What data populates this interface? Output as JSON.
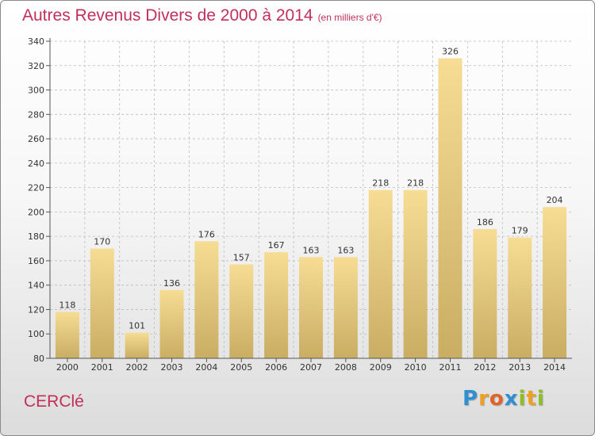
{
  "title": {
    "main": "Autres Revenus Divers de 2000 à 2014",
    "sub": "(en milliers d'€)"
  },
  "location": "CERClé",
  "logo": {
    "text": "Proxiti",
    "letters": [
      {
        "ch": "P",
        "color": "#2f8fd0"
      },
      {
        "ch": "r",
        "color": "#f0a020"
      },
      {
        "ch": "o",
        "color": "#e0632a"
      },
      {
        "ch": "x",
        "color": "#2f8fd0"
      },
      {
        "ch": "i",
        "color": "#8cbf26"
      },
      {
        "ch": "t",
        "color": "#f0a020"
      },
      {
        "ch": "i",
        "color": "#8cbf26"
      }
    ]
  },
  "colors": {
    "accent": "#c2305a",
    "bar_light": "#f7dc94",
    "bar_dark": "#c9ad63",
    "grid": "#bdbdbd"
  },
  "chart_data": {
    "type": "bar",
    "title": "Autres Revenus Divers de 2000 à 2014",
    "subtitle": "(en milliers d'€)",
    "xlabel": "",
    "ylabel": "",
    "categories": [
      "2000",
      "2001",
      "2002",
      "2003",
      "2004",
      "2005",
      "2006",
      "2007",
      "2008",
      "2009",
      "2010",
      "2011",
      "2012",
      "2013",
      "2014"
    ],
    "values": [
      118,
      170,
      101,
      136,
      176,
      157,
      167,
      163,
      163,
      218,
      218,
      326,
      186,
      179,
      204
    ],
    "ylim": [
      80,
      340
    ],
    "yticks": [
      80,
      100,
      120,
      140,
      160,
      180,
      200,
      220,
      240,
      260,
      280,
      300,
      320,
      340
    ],
    "grid": true,
    "data_labels": true
  }
}
